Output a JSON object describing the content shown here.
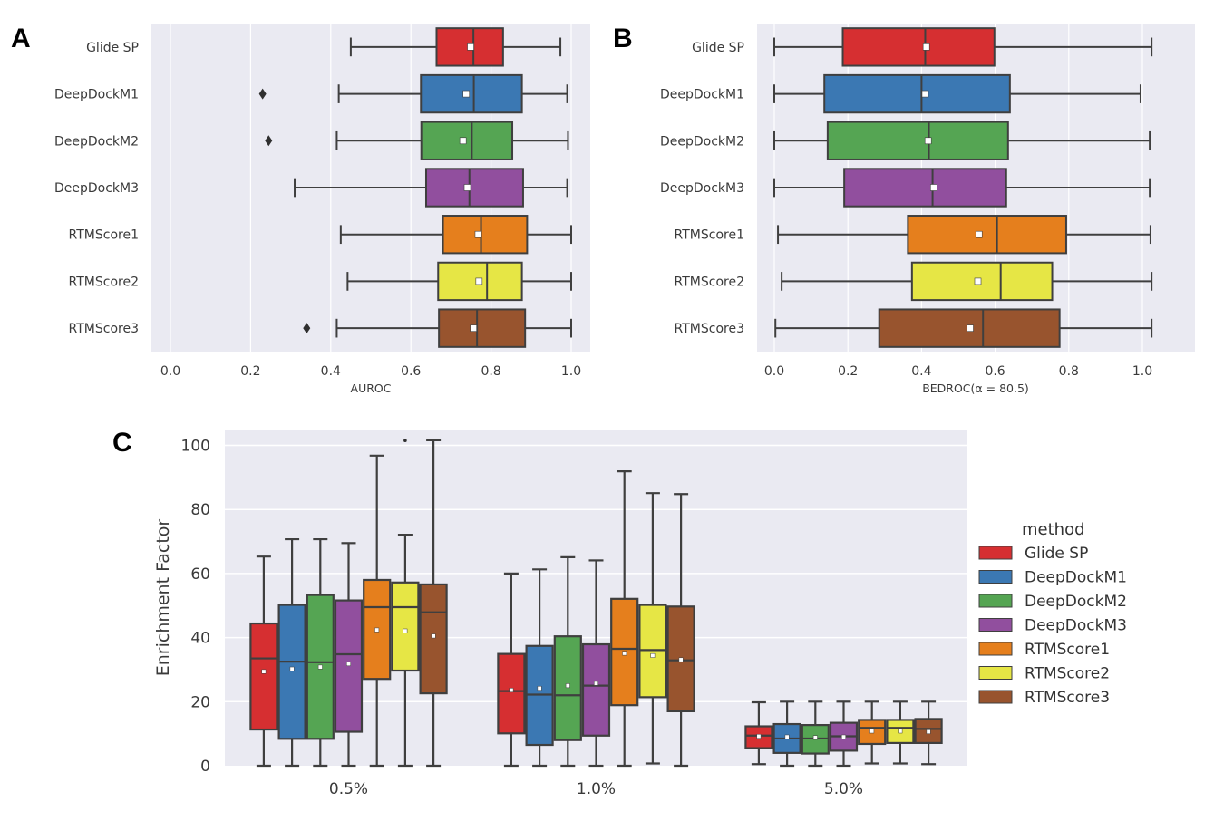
{
  "figure": {
    "panels": [
      "A",
      "B",
      "C"
    ]
  },
  "colors": {
    "plot_bg": "#eaeaf2",
    "grid": "#ffffff",
    "edge": "#3f3f3f",
    "methods": {
      "Glide SP": "#d62f31",
      "DeepDockM1": "#3b78b3",
      "DeepDockM2": "#55a553",
      "DeepDockM3": "#914f9e",
      "RTMScore1": "#e57f1d",
      "RTMScore2": "#e6e645",
      "RTMScore3": "#98542e"
    }
  },
  "chart_data": [
    {
      "panel": "A",
      "type": "boxplot-horizontal",
      "title": "",
      "xlabel": "AUROC",
      "ylabel": "",
      "xlim": [
        -0.05,
        1.05
      ],
      "xticks": [
        0.0,
        0.2,
        0.4,
        0.6,
        0.8,
        1.0
      ],
      "xtick_labels": [
        "0.0",
        "0.2",
        "0.4",
        "0.6",
        "0.8",
        "1.0"
      ],
      "grid": true,
      "categories": [
        "Glide SP",
        "DeepDockM1",
        "DeepDockM2",
        "DeepDockM3",
        "RTMScore1",
        "RTMScore2",
        "RTMScore3"
      ],
      "boxes": [
        {
          "method": "Glide SP",
          "whislo": 0.45,
          "q1": 0.664,
          "median": 0.756,
          "q3": 0.83,
          "whishi": 0.973,
          "mean": 0.749,
          "fliers": []
        },
        {
          "method": "DeepDockM1",
          "whislo": 0.42,
          "q1": 0.625,
          "median": 0.757,
          "q3": 0.877,
          "whishi": 0.99,
          "mean": 0.738,
          "fliers": [
            0.23
          ]
        },
        {
          "method": "DeepDockM2",
          "whislo": 0.415,
          "q1": 0.626,
          "median": 0.752,
          "q3": 0.853,
          "whishi": 0.992,
          "mean": 0.73,
          "fliers": [
            0.245
          ]
        },
        {
          "method": "DeepDockM3",
          "whislo": 0.31,
          "q1": 0.638,
          "median": 0.746,
          "q3": 0.88,
          "whishi": 0.99,
          "mean": 0.741,
          "fliers": []
        },
        {
          "method": "RTMScore1",
          "whislo": 0.425,
          "q1": 0.68,
          "median": 0.775,
          "q3": 0.89,
          "whishi": 1.0,
          "mean": 0.768,
          "fliers": []
        },
        {
          "method": "RTMScore2",
          "whislo": 0.442,
          "q1": 0.668,
          "median": 0.79,
          "q3": 0.877,
          "whishi": 1.0,
          "mean": 0.77,
          "fliers": []
        },
        {
          "method": "RTMScore3",
          "whislo": 0.415,
          "q1": 0.67,
          "median": 0.765,
          "q3": 0.885,
          "whishi": 1.0,
          "mean": 0.756,
          "fliers": [
            0.34
          ]
        }
      ]
    },
    {
      "panel": "B",
      "type": "boxplot-horizontal",
      "title": "",
      "xlabel": "BEDROC(α = 80.5)",
      "ylabel": "",
      "xlim": [
        -0.05,
        1.14
      ],
      "xticks": [
        0.0,
        0.2,
        0.4,
        0.6,
        0.8,
        1.0
      ],
      "xtick_labels": [
        "0.0",
        "0.2",
        "0.4",
        "0.6",
        "0.8",
        "1.0"
      ],
      "grid": true,
      "categories": [
        "Glide SP",
        "DeepDockM1",
        "DeepDockM2",
        "DeepDockM3",
        "RTMScore1",
        "RTMScore2",
        "RTMScore3"
      ],
      "boxes": [
        {
          "method": "Glide SP",
          "whislo": 0.0,
          "q1": 0.186,
          "median": 0.41,
          "q3": 0.598,
          "whishi": 1.025,
          "mean": 0.413,
          "fliers": []
        },
        {
          "method": "DeepDockM1",
          "whislo": 0.0,
          "q1": 0.136,
          "median": 0.4,
          "q3": 0.64,
          "whishi": 0.995,
          "mean": 0.41,
          "fliers": []
        },
        {
          "method": "DeepDockM2",
          "whislo": 0.0,
          "q1": 0.145,
          "median": 0.42,
          "q3": 0.635,
          "whishi": 1.02,
          "mean": 0.418,
          "fliers": []
        },
        {
          "method": "DeepDockM3",
          "whislo": 0.0,
          "q1": 0.19,
          "median": 0.43,
          "q3": 0.63,
          "whishi": 1.02,
          "mean": 0.433,
          "fliers": []
        },
        {
          "method": "RTMScore1",
          "whislo": 0.01,
          "q1": 0.363,
          "median": 0.605,
          "q3": 0.793,
          "whishi": 1.022,
          "mean": 0.556,
          "fliers": []
        },
        {
          "method": "RTMScore2",
          "whislo": 0.02,
          "q1": 0.374,
          "median": 0.615,
          "q3": 0.755,
          "whishi": 1.025,
          "mean": 0.553,
          "fliers": []
        },
        {
          "method": "RTMScore3",
          "whislo": 0.003,
          "q1": 0.285,
          "median": 0.567,
          "q3": 0.775,
          "whishi": 1.025,
          "mean": 0.532,
          "fliers": []
        }
      ]
    },
    {
      "panel": "C",
      "type": "boxplot-grouped",
      "title": "",
      "xlabel": "",
      "ylabel": "Enrichment Factor",
      "ylim": [
        -0.5,
        105
      ],
      "yticks": [
        0,
        20,
        40,
        60,
        80,
        100
      ],
      "ytick_labels": [
        "0",
        "20",
        "40",
        "60",
        "80",
        "100"
      ],
      "grid": true,
      "categories": [
        "0.5%",
        "1.0%",
        "5.0%"
      ],
      "legend": {
        "title": "method",
        "position": "right",
        "entries": [
          "Glide SP",
          "DeepDockM1",
          "DeepDockM2",
          "DeepDockM3",
          "RTMScore1",
          "RTMScore2",
          "RTMScore3"
        ]
      },
      "series": [
        {
          "name": "Glide SP",
          "boxes": [
            {
              "whislo": 0,
              "q1": 11.3,
              "median": 33.5,
              "q3": 44.4,
              "whishi": 65.3,
              "mean": 29.4,
              "fliers": []
            },
            {
              "whislo": 0,
              "q1": 10.1,
              "median": 23.3,
              "q3": 34.9,
              "whishi": 60.0,
              "mean": 23.6,
              "fliers": []
            },
            {
              "whislo": 0.5,
              "q1": 5.5,
              "median": 9.4,
              "q3": 12.3,
              "whishi": 19.8,
              "mean": 9.2,
              "fliers": []
            }
          ]
        },
        {
          "name": "DeepDockM1",
          "boxes": [
            {
              "whislo": 0,
              "q1": 8.4,
              "median": 32.5,
              "q3": 50.2,
              "whishi": 70.7,
              "mean": 30.2,
              "fliers": []
            },
            {
              "whislo": 0,
              "q1": 6.5,
              "median": 22.2,
              "q3": 37.4,
              "whishi": 61.3,
              "mean": 24.2,
              "fliers": []
            },
            {
              "whislo": 0,
              "q1": 4.0,
              "median": 8.5,
              "q3": 13.0,
              "whishi": 20.0,
              "mean": 9.0,
              "fliers": []
            }
          ]
        },
        {
          "name": "DeepDockM2",
          "boxes": [
            {
              "whislo": 0,
              "q1": 8.4,
              "median": 32.3,
              "q3": 53.3,
              "whishi": 70.7,
              "mean": 30.8,
              "fliers": []
            },
            {
              "whislo": 0,
              "q1": 8.0,
              "median": 22.0,
              "q3": 40.4,
              "whishi": 65.1,
              "mean": 25.0,
              "fliers": []
            },
            {
              "whislo": 0,
              "q1": 3.8,
              "median": 8.5,
              "q3": 12.7,
              "whishi": 20.0,
              "mean": 8.8,
              "fliers": []
            }
          ]
        },
        {
          "name": "DeepDockM3",
          "boxes": [
            {
              "whislo": 0,
              "q1": 10.6,
              "median": 34.8,
              "q3": 51.6,
              "whishi": 69.5,
              "mean": 31.8,
              "fliers": []
            },
            {
              "whislo": 0,
              "q1": 9.4,
              "median": 25.0,
              "q3": 37.9,
              "whishi": 64.1,
              "mean": 25.7,
              "fliers": []
            },
            {
              "whislo": 0,
              "q1": 4.7,
              "median": 9.2,
              "q3": 13.4,
              "whishi": 20.0,
              "mean": 9.0,
              "fliers": []
            }
          ]
        },
        {
          "name": "RTMScore1",
          "boxes": [
            {
              "whislo": 0,
              "q1": 27.1,
              "median": 49.5,
              "q3": 58.0,
              "whishi": 96.8,
              "mean": 42.4,
              "fliers": []
            },
            {
              "whislo": 0,
              "q1": 18.9,
              "median": 36.5,
              "q3": 52.1,
              "whishi": 91.9,
              "mean": 35.1,
              "fliers": []
            },
            {
              "whislo": 0.7,
              "q1": 6.8,
              "median": 11.8,
              "q3": 14.3,
              "whishi": 20.0,
              "mean": 10.8,
              "fliers": []
            }
          ]
        },
        {
          "name": "RTMScore2",
          "boxes": [
            {
              "whislo": 0,
              "q1": 29.7,
              "median": 49.5,
              "q3": 57.2,
              "whishi": 72.1,
              "mean": 42.1,
              "fliers": [
                101.5
              ]
            },
            {
              "whislo": 0.7,
              "q1": 21.4,
              "median": 36.1,
              "q3": 50.2,
              "whishi": 85.1,
              "mean": 34.4,
              "fliers": []
            },
            {
              "whislo": 0.7,
              "q1": 7.1,
              "median": 11.8,
              "q3": 14.3,
              "whishi": 20.0,
              "mean": 10.8,
              "fliers": []
            }
          ]
        },
        {
          "name": "RTMScore3",
          "boxes": [
            {
              "whislo": 0,
              "q1": 22.6,
              "median": 47.9,
              "q3": 56.6,
              "whishi": 101.6,
              "mean": 40.5,
              "fliers": []
            },
            {
              "whislo": 0,
              "q1": 17.0,
              "median": 32.9,
              "q3": 49.7,
              "whishi": 84.8,
              "mean": 33.1,
              "fliers": []
            },
            {
              "whislo": 0.5,
              "q1": 7.1,
              "median": 11.5,
              "q3": 14.6,
              "whishi": 20.0,
              "mean": 10.6,
              "fliers": []
            }
          ]
        }
      ]
    }
  ]
}
